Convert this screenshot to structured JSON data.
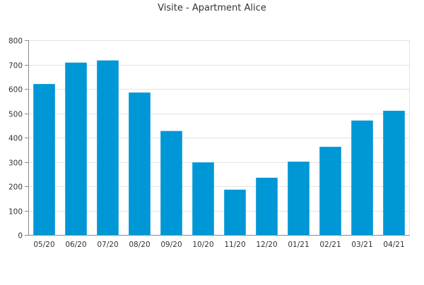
{
  "chart_data": {
    "type": "bar",
    "title": "Visite - Apartment Alice",
    "xlabel": "",
    "ylabel": "",
    "categories": [
      "05/20",
      "06/20",
      "07/20",
      "08/20",
      "09/20",
      "10/20",
      "11/20",
      "12/20",
      "01/21",
      "02/21",
      "03/21",
      "04/21"
    ],
    "values": [
      620,
      708,
      717,
      585,
      427,
      298,
      186,
      235,
      301,
      362,
      470,
      510
    ],
    "ylim": [
      0,
      800
    ],
    "yticks": [
      0,
      100,
      200,
      300,
      400,
      500,
      600,
      700,
      800
    ],
    "grid": true,
    "legend": "none",
    "bar_color": "#0097d6"
  }
}
